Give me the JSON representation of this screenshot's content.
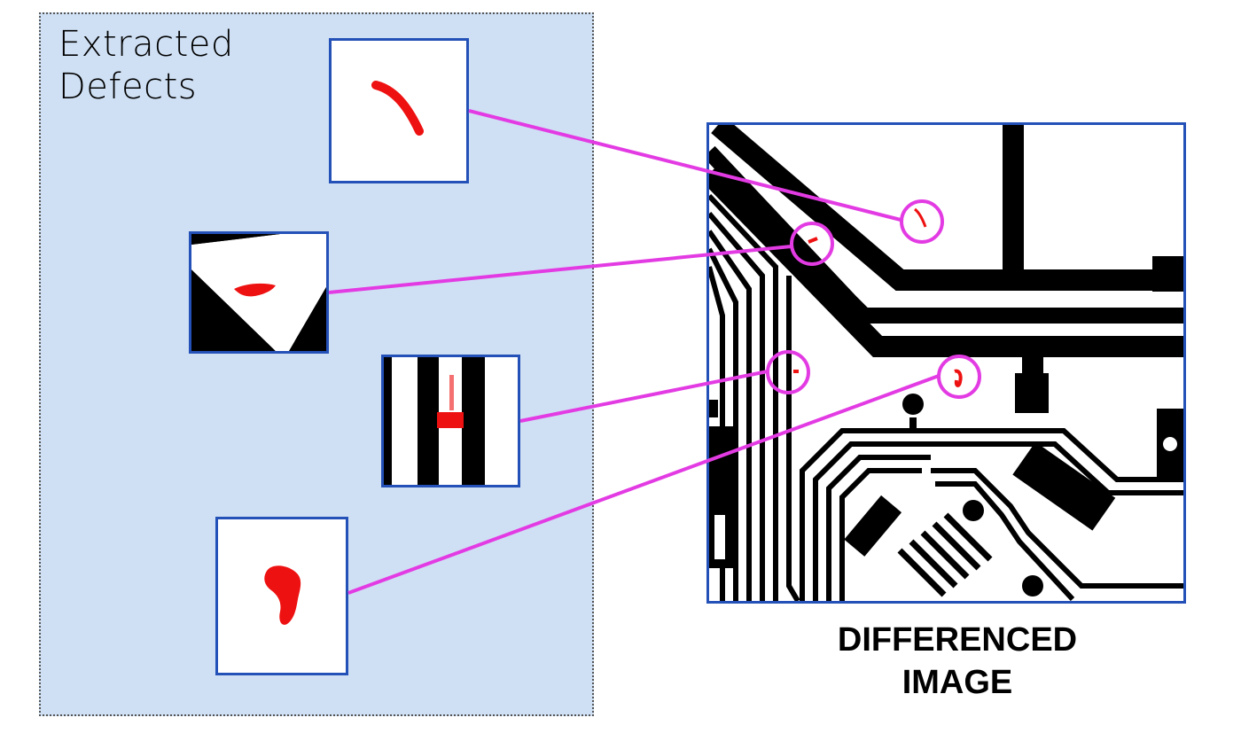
{
  "panel": {
    "title_line1": "Extracted",
    "title_line2": "Defects",
    "background_color": "#cfe0f4"
  },
  "defect_tiles": [
    {
      "name": "defect-1",
      "content": "curved-red-scratch"
    },
    {
      "name": "defect-2",
      "content": "red-blob-on-diagonal-trace"
    },
    {
      "name": "defect-3",
      "content": "red-short-between-vertical-traces"
    },
    {
      "name": "defect-4",
      "content": "red-blob"
    }
  ],
  "diff_image": {
    "caption_line1": "DIFFERENCED",
    "caption_line2": "IMAGE",
    "content": "pcb-circuit-traces"
  },
  "colors": {
    "frame": "#2451b7",
    "connector": "#e33be3",
    "defect": "#ee1111",
    "trace": "#000000"
  }
}
